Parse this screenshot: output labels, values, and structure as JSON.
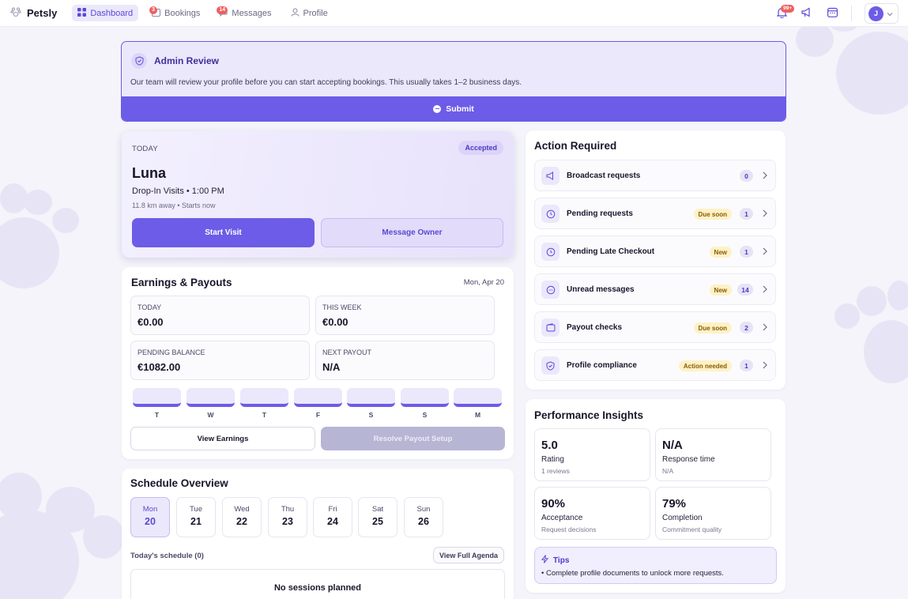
{
  "app": {
    "name": "Petsly"
  },
  "nav": {
    "dashboard": "Dashboard",
    "bookings": "Bookings",
    "bookings_badge": "3",
    "messages": "Messages",
    "messages_badge": "14",
    "profile": "Profile"
  },
  "topbar": {
    "notifications_badge": "99+",
    "avatar_initial": "J"
  },
  "admin": {
    "title": "Admin Review",
    "text": "Our team will review your profile before you can start accepting bookings. This usually takes 1–2 business days.",
    "submit": "Submit"
  },
  "today": {
    "label": "TODAY",
    "status": "Accepted",
    "pet": "Luna",
    "visit": "Drop-In Visits • 1:00 PM",
    "sub": "11.8 km away • Starts now",
    "start": "Start Visit",
    "message": "Message Owner"
  },
  "earnings": {
    "title": "Earnings & Payouts",
    "date": "Mon, Apr 20",
    "stats": [
      {
        "label": "TODAY",
        "value": "€0.00"
      },
      {
        "label": "THIS WEEK",
        "value": "€0.00"
      },
      {
        "label": "PENDING BALANCE",
        "value": "€1082.00"
      },
      {
        "label": "NEXT PAYOUT",
        "value": "N/A"
      }
    ],
    "week_days": [
      "T",
      "W",
      "T",
      "F",
      "S",
      "S",
      "M"
    ],
    "view": "View Earnings",
    "resolve": "Resolve Payout Setup"
  },
  "schedule": {
    "title": "Schedule Overview",
    "days": [
      {
        "name": "Mon",
        "num": "20"
      },
      {
        "name": "Tue",
        "num": "21"
      },
      {
        "name": "Wed",
        "num": "22"
      },
      {
        "name": "Thu",
        "num": "23"
      },
      {
        "name": "Fri",
        "num": "24"
      },
      {
        "name": "Sat",
        "num": "25"
      },
      {
        "name": "Sun",
        "num": "26"
      }
    ],
    "today_label": "Today's schedule (0)",
    "agenda": "View Full Agenda",
    "empty": "No sessions planned"
  },
  "actions": {
    "title": "Action Required",
    "items": [
      {
        "label": "Broadcast requests",
        "tag": "",
        "count": "0",
        "icon": "megaphone-icon"
      },
      {
        "label": "Pending requests",
        "tag": "Due soon",
        "count": "1",
        "icon": "clock-icon"
      },
      {
        "label": "Pending Late Checkout",
        "tag": "New",
        "count": "1",
        "icon": "clock-icon"
      },
      {
        "label": "Unread messages",
        "tag": "New",
        "count": "14",
        "icon": "chat-icon"
      },
      {
        "label": "Payout checks",
        "tag": "Due soon",
        "count": "2",
        "icon": "wallet-icon"
      },
      {
        "label": "Profile compliance",
        "tag": "Action needed",
        "count": "1",
        "icon": "shield-icon"
      }
    ]
  },
  "performance": {
    "title": "Performance Insights",
    "items": [
      {
        "value": "5.0",
        "label": "Rating",
        "sub": "1 reviews"
      },
      {
        "value": "N/A",
        "label": "Response time",
        "sub": "N/A"
      },
      {
        "value": "90%",
        "label": "Acceptance",
        "sub": "Request decisions"
      },
      {
        "value": "79%",
        "label": "Completion",
        "sub": "Commitment quality"
      }
    ],
    "tips_title": "Tips",
    "tips_text": "• Complete profile documents to unlock more requests."
  },
  "colors": {
    "accent": "#6c5ce7",
    "accent_soft": "#ebe8fb",
    "badge": "#ef5f5f",
    "tag_bg": "#fdf1c7"
  }
}
